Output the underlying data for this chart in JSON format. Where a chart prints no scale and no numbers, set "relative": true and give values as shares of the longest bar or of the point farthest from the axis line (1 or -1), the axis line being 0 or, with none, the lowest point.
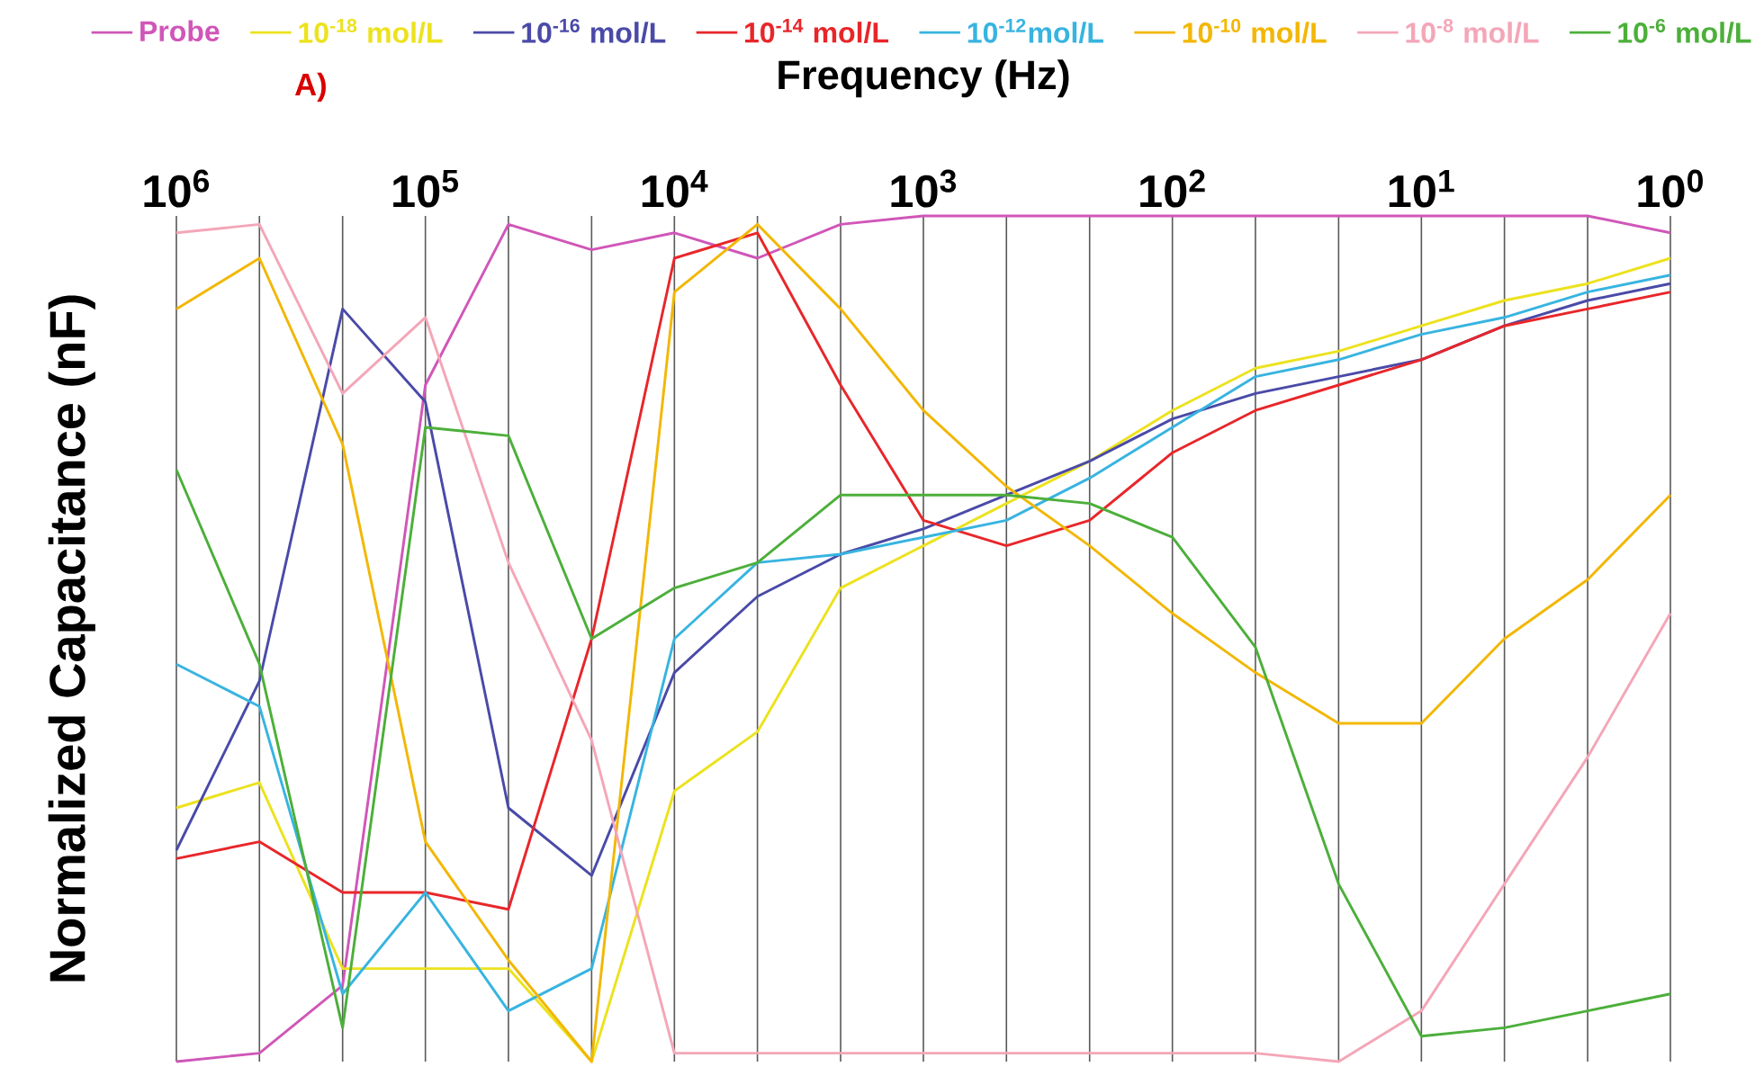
{
  "chart_data": {
    "type": "line",
    "xlabel": "Frequency (Hz)",
    "ylabel": "Normalized Capacitance (nF)",
    "annotations": [
      "A)"
    ],
    "relative": true,
    "log": "x",
    "grid": "x",
    "legend": "top",
    "x": [
      1000000,
      464000,
      215000,
      100000,
      46400,
      21500,
      10000,
      4640,
      2150,
      1000,
      464,
      215,
      100,
      46.4,
      21.5,
      10,
      4.64,
      2.15,
      1
    ],
    "xlim": [
      1000000,
      1
    ],
    "xticks": [
      {
        "value": 1000000,
        "label": "10$^{6}$"
      },
      {
        "value": 464000,
        "label": null
      },
      {
        "value": 215000,
        "label": null
      },
      {
        "value": 100000,
        "label": "10$^{5}$"
      },
      {
        "value": 46400,
        "label": null
      },
      {
        "value": 21500,
        "label": null
      },
      {
        "value": 10000,
        "label": "10$^{4}$"
      },
      {
        "value": 4640,
        "label": null
      },
      {
        "value": 2150,
        "label": null
      },
      {
        "value": 1000,
        "label": "10$^{3}$"
      },
      {
        "value": 464,
        "label": null
      },
      {
        "value": 215,
        "label": null
      },
      {
        "value": 100,
        "label": "10$^{2}$"
      },
      {
        "value": 46.4,
        "label": null
      },
      {
        "value": 21.5,
        "label": null
      },
      {
        "value": 10,
        "label": "10$^{1}$"
      },
      {
        "value": 4.64,
        "label": null
      },
      {
        "value": 2.15,
        "label": null
      },
      {
        "value": 1,
        "label": "10$^{0}$"
      }
    ],
    "series": [
      {
        "name": "Probe",
        "color": "#d056b8",
        "values": [
          0,
          0.01,
          0.09,
          0.8,
          0.99,
          0.96,
          0.98,
          0.95,
          0.99,
          1,
          1,
          1,
          1,
          1,
          1,
          1,
          1,
          1,
          0.98
        ]
      },
      {
        "name": "10$^{-18}$ mol/L",
        "color": "#ece21e",
        "values": [
          0.3,
          0.33,
          0.11,
          0.11,
          0.11,
          0,
          0.32,
          0.39,
          0.56,
          0.61,
          0.66,
          0.71,
          0.77,
          0.82,
          0.84,
          0.87,
          0.9,
          0.92,
          0.95
        ]
      },
      {
        "name": "10$^{-16}$ mol/L",
        "color": "#4a4aa8",
        "values": [
          0.25,
          0.45,
          0.89,
          0.78,
          0.3,
          0.22,
          0.46,
          0.55,
          0.6,
          0.63,
          0.67,
          0.71,
          0.76,
          0.79,
          0.81,
          0.83,
          0.87,
          0.9,
          0.92
        ]
      },
      {
        "name": "10$^{-14}$ mol/L",
        "color": "#e8262a",
        "values": [
          0.24,
          0.26,
          0.2,
          0.2,
          0.18,
          0.5,
          0.95,
          0.98,
          0.8,
          0.64,
          0.61,
          0.64,
          0.72,
          0.77,
          0.8,
          0.83,
          0.87,
          0.89,
          0.91
        ]
      },
      {
        "name": "10$^{-12}$mol/L",
        "color": "#38b4e0",
        "values": [
          0.47,
          0.42,
          0.08,
          0.2,
          0.06,
          0.11,
          0.5,
          0.59,
          0.6,
          0.62,
          0.64,
          0.69,
          0.75,
          0.81,
          0.83,
          0.86,
          0.88,
          0.91,
          0.93
        ]
      },
      {
        "name": "10$^{-10}$ mol/L",
        "color": "#f2b705",
        "values": [
          0.89,
          0.95,
          0.73,
          0.26,
          0.12,
          0,
          0.91,
          0.99,
          0.89,
          0.77,
          0.68,
          0.61,
          0.53,
          0.46,
          0.4,
          0.4,
          0.5,
          0.57,
          0.67
        ]
      },
      {
        "name": "10$^{-8}$ mol/L",
        "color": "#f4a6b8",
        "values": [
          0.98,
          0.99,
          0.79,
          0.88,
          0.59,
          0.38,
          0.01,
          0.01,
          0.01,
          0.01,
          0.01,
          0.01,
          0.01,
          0.01,
          0,
          0.06,
          0.21,
          0.36,
          0.53
        ]
      },
      {
        "name": "10$^{-6}$ mol/L",
        "color": "#4caf3a",
        "values": [
          0.7,
          0.47,
          0.04,
          0.75,
          0.74,
          0.5,
          0.56,
          0.59,
          0.67,
          0.67,
          0.67,
          0.66,
          0.62,
          0.49,
          0.21,
          0.03,
          0.04,
          0.06,
          0.08
        ]
      }
    ]
  }
}
